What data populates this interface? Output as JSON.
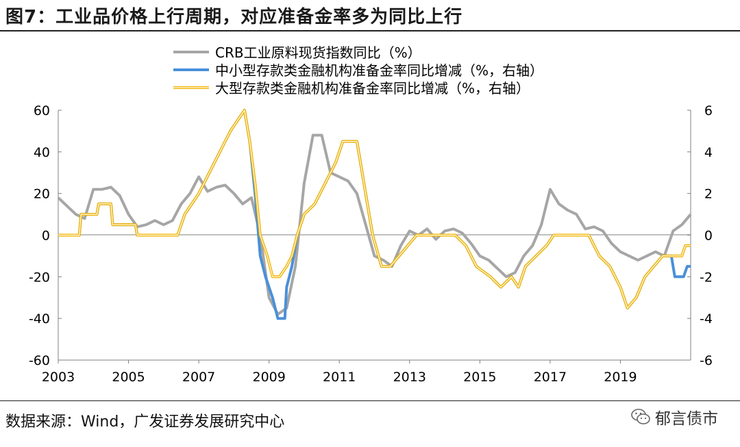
{
  "title": "图7：工业品价格上行周期，对应准备金率多为同比上行",
  "source": "数据来源：Wind，广发证券发展研究中心",
  "watermark": "郁言债市",
  "chart_data": {
    "type": "line",
    "x_ticks": [
      "2003",
      "2005",
      "2007",
      "2009",
      "2011",
      "2013",
      "2015",
      "2017",
      "2019"
    ],
    "y_left": {
      "range": [
        -60,
        60
      ],
      "ticks": [
        "60",
        "40",
        "20",
        "0",
        "-20",
        "-40",
        "-60"
      ]
    },
    "y_right": {
      "range": [
        -6,
        6
      ],
      "ticks": [
        "6",
        "4",
        "2",
        "0",
        "-2",
        "-4",
        "-6"
      ]
    },
    "grid": false,
    "legend_position": "top-center",
    "series": [
      {
        "name": "CRB工业原料现货指数同比（%）",
        "axis": "left",
        "color": "#a6a6a6",
        "points": [
          [
            2003.0,
            18
          ],
          [
            2003.25,
            14
          ],
          [
            2003.5,
            10
          ],
          [
            2003.75,
            8
          ],
          [
            2004.0,
            22
          ],
          [
            2004.25,
            22
          ],
          [
            2004.5,
            23
          ],
          [
            2004.75,
            19
          ],
          [
            2005.0,
            10
          ],
          [
            2005.25,
            4
          ],
          [
            2005.5,
            5
          ],
          [
            2005.75,
            7
          ],
          [
            2006.0,
            5
          ],
          [
            2006.25,
            7
          ],
          [
            2006.5,
            15
          ],
          [
            2006.75,
            20
          ],
          [
            2007.0,
            28
          ],
          [
            2007.25,
            21
          ],
          [
            2007.5,
            23
          ],
          [
            2007.75,
            24
          ],
          [
            2008.0,
            20
          ],
          [
            2008.25,
            15
          ],
          [
            2008.5,
            18
          ],
          [
            2008.75,
            0
          ],
          [
            2009.0,
            -30
          ],
          [
            2009.25,
            -38
          ],
          [
            2009.5,
            -35
          ],
          [
            2009.75,
            -15
          ],
          [
            2010.0,
            25
          ],
          [
            2010.25,
            48
          ],
          [
            2010.5,
            48
          ],
          [
            2010.75,
            30
          ],
          [
            2011.0,
            28
          ],
          [
            2011.25,
            26
          ],
          [
            2011.5,
            20
          ],
          [
            2011.75,
            5
          ],
          [
            2012.0,
            -10
          ],
          [
            2012.25,
            -12
          ],
          [
            2012.5,
            -15
          ],
          [
            2012.75,
            -5
          ],
          [
            2013.0,
            2
          ],
          [
            2013.25,
            0
          ],
          [
            2013.5,
            3
          ],
          [
            2013.75,
            -2
          ],
          [
            2014.0,
            2
          ],
          [
            2014.25,
            3
          ],
          [
            2014.5,
            1
          ],
          [
            2014.75,
            -4
          ],
          [
            2015.0,
            -10
          ],
          [
            2015.25,
            -12
          ],
          [
            2015.5,
            -16
          ],
          [
            2015.75,
            -20
          ],
          [
            2016.0,
            -18
          ],
          [
            2016.25,
            -10
          ],
          [
            2016.5,
            -5
          ],
          [
            2016.75,
            5
          ],
          [
            2017.0,
            22
          ],
          [
            2017.25,
            15
          ],
          [
            2017.5,
            12
          ],
          [
            2017.75,
            10
          ],
          [
            2018.0,
            3
          ],
          [
            2018.25,
            4
          ],
          [
            2018.5,
            2
          ],
          [
            2018.75,
            -4
          ],
          [
            2019.0,
            -8
          ],
          [
            2019.25,
            -10
          ],
          [
            2019.5,
            -12
          ],
          [
            2019.75,
            -10
          ],
          [
            2020.0,
            -8
          ],
          [
            2020.25,
            -10
          ],
          [
            2020.5,
            2
          ],
          [
            2020.75,
            5
          ],
          [
            2021.0,
            10
          ]
        ]
      },
      {
        "name": "中小型存款类金融机构准备金率同比增减（%，右轴）",
        "axis": "right",
        "color": "#4a90d9",
        "points": [
          [
            2003.0,
            0
          ],
          [
            2003.6,
            0
          ],
          [
            2003.65,
            1
          ],
          [
            2004.1,
            1
          ],
          [
            2004.15,
            1.5
          ],
          [
            2004.5,
            1.5
          ],
          [
            2004.55,
            0.5
          ],
          [
            2005.2,
            0.5
          ],
          [
            2005.25,
            0
          ],
          [
            2006.4,
            0
          ],
          [
            2006.6,
            1
          ],
          [
            2007.0,
            2
          ],
          [
            2007.3,
            3
          ],
          [
            2007.6,
            4
          ],
          [
            2007.9,
            5
          ],
          [
            2008.1,
            5.5
          ],
          [
            2008.3,
            6
          ],
          [
            2008.45,
            4.5
          ],
          [
            2008.6,
            2
          ],
          [
            2008.75,
            -1
          ],
          [
            2008.9,
            -2
          ],
          [
            2009.1,
            -3
          ],
          [
            2009.25,
            -4
          ],
          [
            2009.45,
            -4
          ],
          [
            2009.5,
            -2.5
          ],
          [
            2009.65,
            -1.5
          ],
          [
            2009.8,
            0
          ],
          [
            2010.0,
            1
          ],
          [
            2010.3,
            1.5
          ],
          [
            2010.6,
            2.5
          ],
          [
            2010.9,
            3.5
          ],
          [
            2011.1,
            4.5
          ],
          [
            2011.3,
            4.5
          ],
          [
            2011.5,
            4.5
          ],
          [
            2011.65,
            3
          ],
          [
            2011.8,
            1.5
          ],
          [
            2011.95,
            0
          ],
          [
            2012.2,
            -1.5
          ],
          [
            2012.45,
            -1.5
          ],
          [
            2012.7,
            -1
          ],
          [
            2012.95,
            -0.5
          ],
          [
            2013.2,
            0
          ],
          [
            2014.3,
            0
          ],
          [
            2014.6,
            -0.5
          ],
          [
            2014.9,
            -1.5
          ],
          [
            2015.3,
            -2
          ],
          [
            2015.6,
            -2.5
          ],
          [
            2015.9,
            -2
          ],
          [
            2016.1,
            -2.5
          ],
          [
            2016.3,
            -1.5
          ],
          [
            2016.6,
            -1
          ],
          [
            2016.9,
            -0.5
          ],
          [
            2017.1,
            0
          ],
          [
            2018.1,
            0
          ],
          [
            2018.4,
            -1
          ],
          [
            2018.7,
            -1.5
          ],
          [
            2019.0,
            -2.5
          ],
          [
            2019.2,
            -3.5
          ],
          [
            2019.45,
            -3
          ],
          [
            2019.7,
            -2
          ],
          [
            2019.95,
            -1.5
          ],
          [
            2020.2,
            -1
          ],
          [
            2020.45,
            -1
          ],
          [
            2020.55,
            -2
          ],
          [
            2020.8,
            -2
          ],
          [
            2020.9,
            -1.5
          ],
          [
            2021.0,
            -1.5
          ]
        ]
      },
      {
        "name": "大型存款类金融机构准备金率同比增减（%，右轴）",
        "axis": "right",
        "color": "#f0b400",
        "points": [
          [
            2003.0,
            0
          ],
          [
            2003.6,
            0
          ],
          [
            2003.65,
            1
          ],
          [
            2004.1,
            1
          ],
          [
            2004.15,
            1.5
          ],
          [
            2004.5,
            1.5
          ],
          [
            2004.55,
            0.5
          ],
          [
            2005.2,
            0.5
          ],
          [
            2005.25,
            0
          ],
          [
            2006.4,
            0
          ],
          [
            2006.6,
            1
          ],
          [
            2007.0,
            2
          ],
          [
            2007.3,
            3
          ],
          [
            2007.6,
            4
          ],
          [
            2007.9,
            5
          ],
          [
            2008.1,
            5.5
          ],
          [
            2008.3,
            6
          ],
          [
            2008.45,
            4.5
          ],
          [
            2008.6,
            2.5
          ],
          [
            2008.75,
            0
          ],
          [
            2008.95,
            -1
          ],
          [
            2009.1,
            -2
          ],
          [
            2009.3,
            -2
          ],
          [
            2009.5,
            -1.5
          ],
          [
            2009.65,
            -1
          ],
          [
            2009.8,
            0
          ],
          [
            2010.0,
            1
          ],
          [
            2010.3,
            1.5
          ],
          [
            2010.6,
            2.5
          ],
          [
            2010.9,
            3.5
          ],
          [
            2011.1,
            4.5
          ],
          [
            2011.3,
            4.5
          ],
          [
            2011.5,
            4.5
          ],
          [
            2011.65,
            3
          ],
          [
            2011.8,
            1.5
          ],
          [
            2011.95,
            0
          ],
          [
            2012.2,
            -1.5
          ],
          [
            2012.45,
            -1.5
          ],
          [
            2012.7,
            -1
          ],
          [
            2012.95,
            -0.5
          ],
          [
            2013.2,
            0
          ],
          [
            2014.3,
            0
          ],
          [
            2014.6,
            -0.5
          ],
          [
            2014.9,
            -1.5
          ],
          [
            2015.3,
            -2
          ],
          [
            2015.6,
            -2.5
          ],
          [
            2015.9,
            -2
          ],
          [
            2016.1,
            -2.5
          ],
          [
            2016.3,
            -1.5
          ],
          [
            2016.6,
            -1
          ],
          [
            2016.9,
            -0.5
          ],
          [
            2017.1,
            0
          ],
          [
            2018.1,
            0
          ],
          [
            2018.4,
            -1
          ],
          [
            2018.7,
            -1.5
          ],
          [
            2019.0,
            -2.5
          ],
          [
            2019.2,
            -3.5
          ],
          [
            2019.45,
            -3
          ],
          [
            2019.7,
            -2
          ],
          [
            2019.95,
            -1.5
          ],
          [
            2020.2,
            -1
          ],
          [
            2020.45,
            -1
          ],
          [
            2020.75,
            -1
          ],
          [
            2020.85,
            -0.5
          ],
          [
            2021.0,
            -0.5
          ]
        ]
      }
    ]
  }
}
